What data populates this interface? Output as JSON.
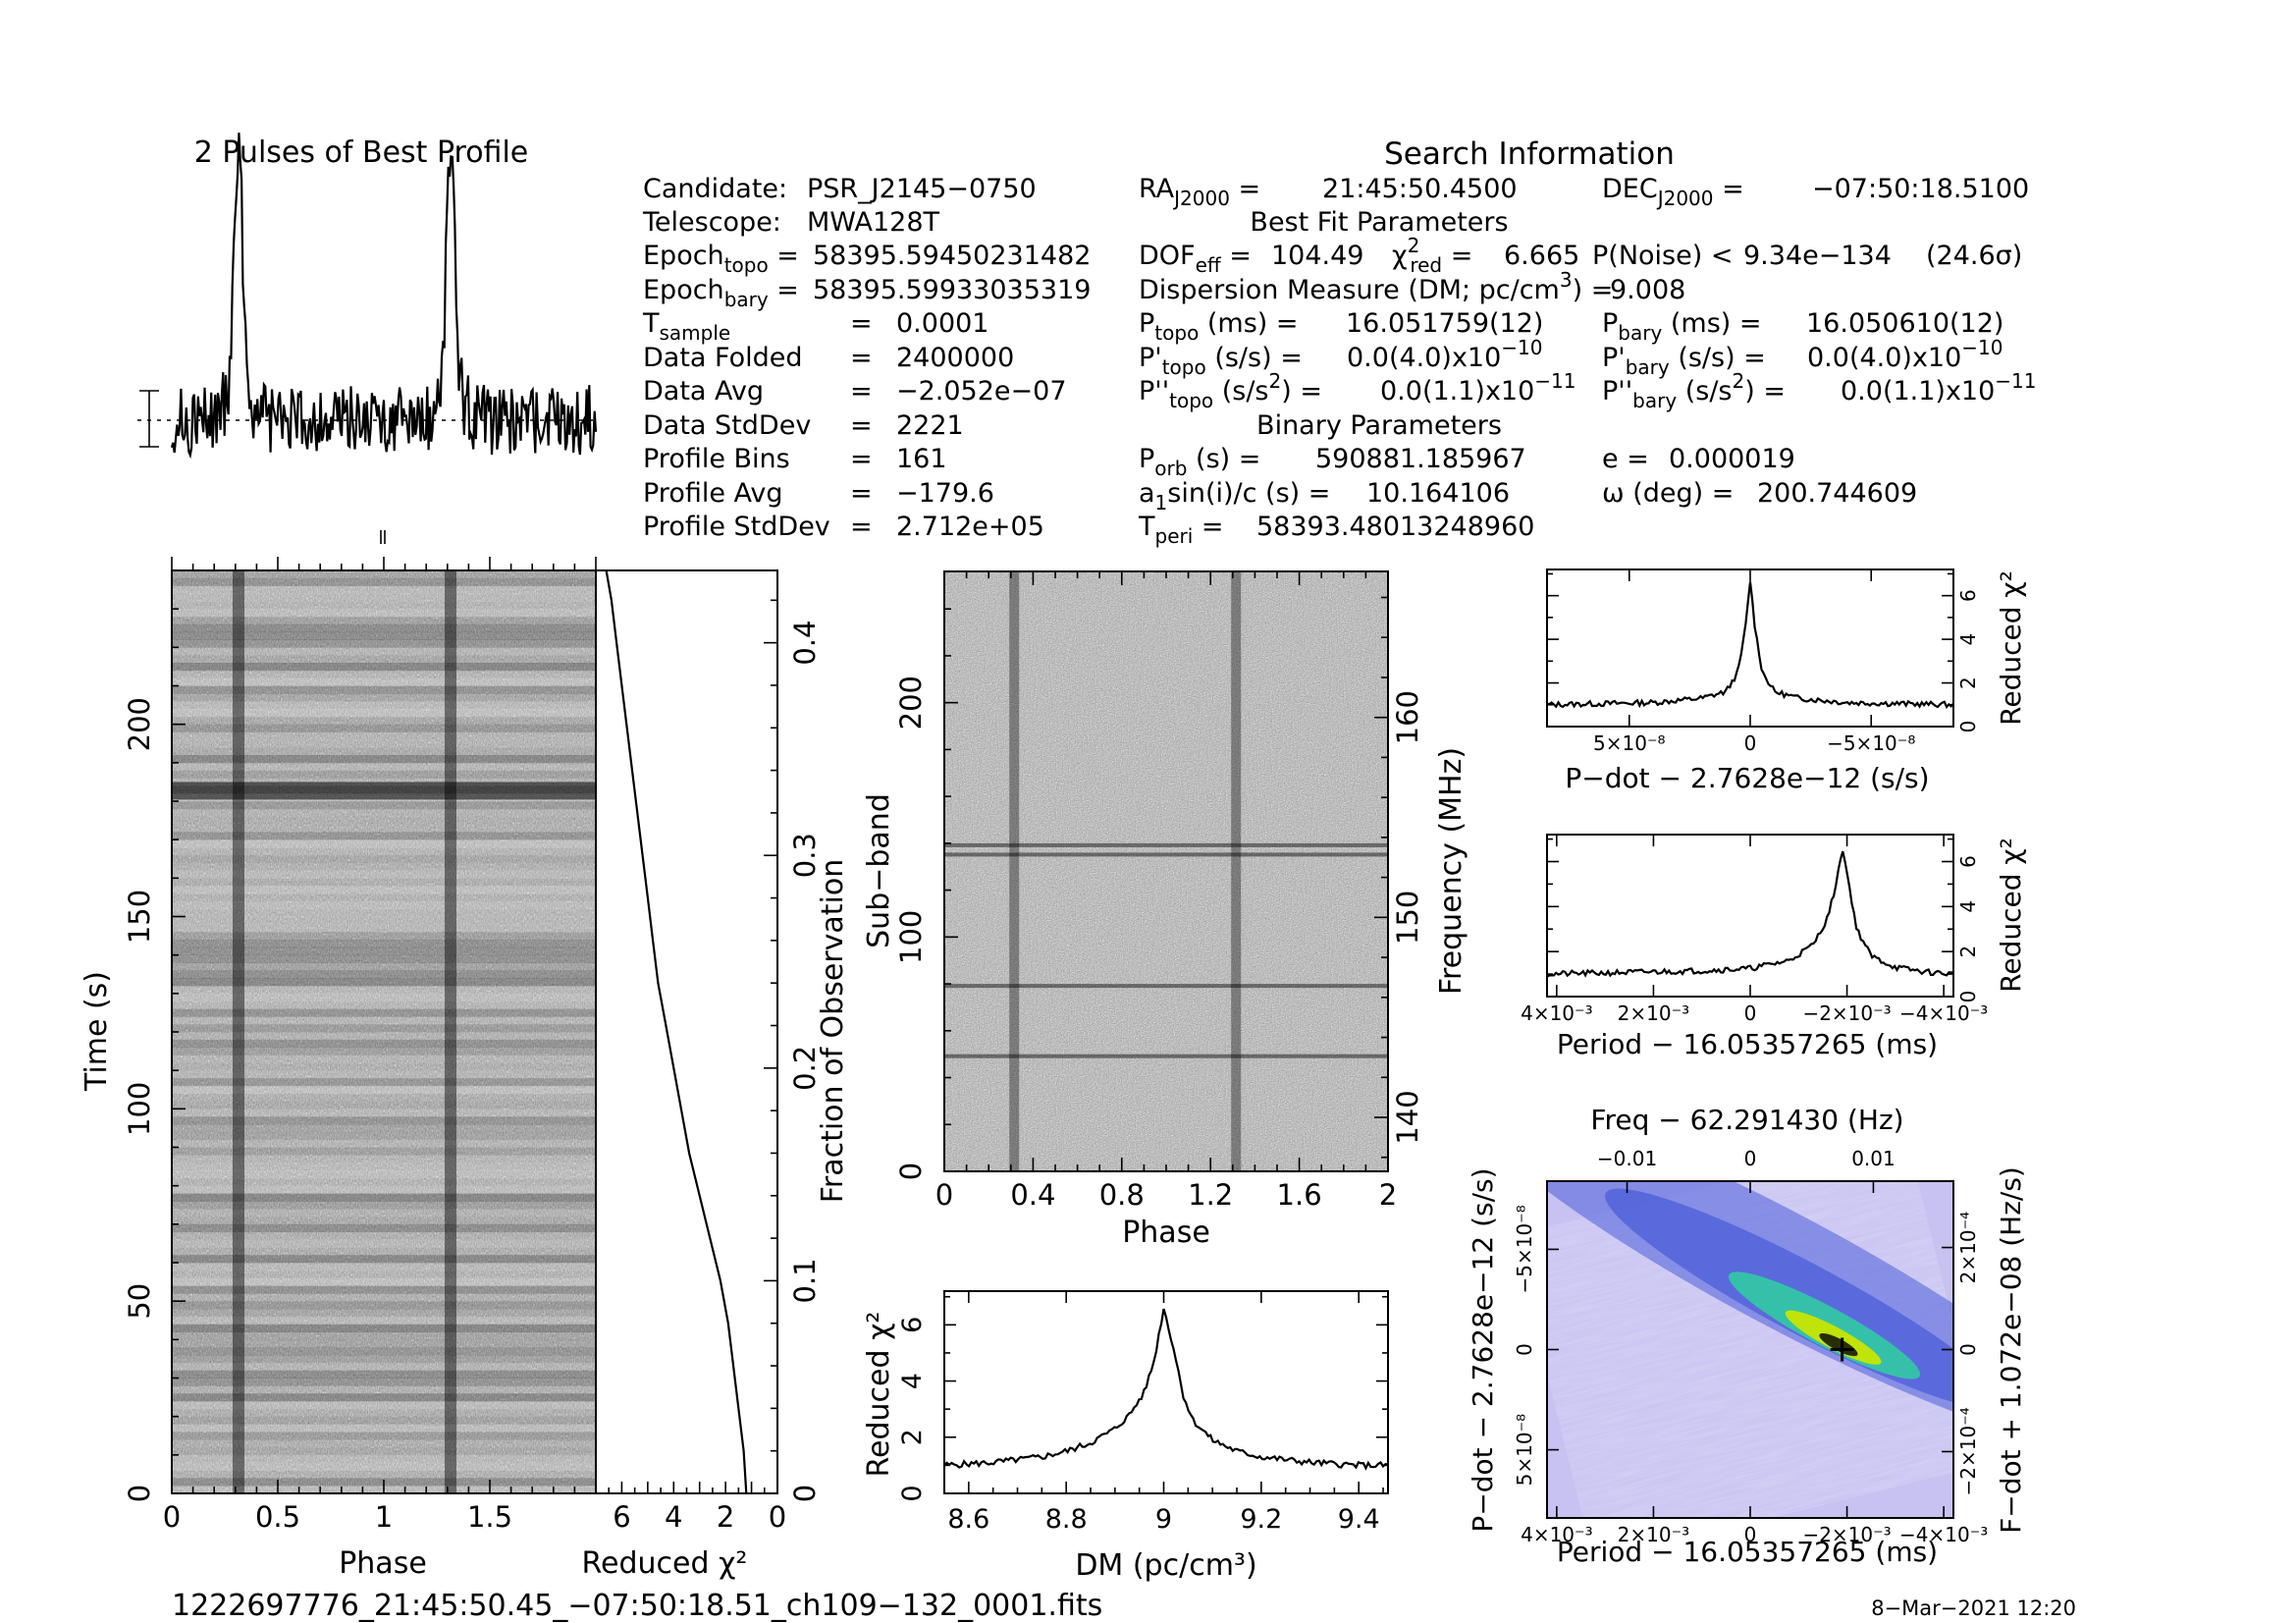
{
  "chart_data": {
    "title": "2 Pulses of Best Profile",
    "footer": {
      "filename": "1222697776_21:45:50.45_−07:50:18.51_ch109−132_0001.fits",
      "date": "8−Mar−2021 12:20"
    },
    "search_info": {
      "heading": "Search Information",
      "best_fit_heading": "Best Fit Parameters",
      "binary_heading": "Binary Parameters",
      "left_rows": [
        {
          "label": "Candidate:",
          "value": "PSR_J2145−0750"
        },
        {
          "label": "Telescope:",
          "value": "MWA128T"
        },
        {
          "label": "Epoch_topo = ",
          "value": "58395.59450231482"
        },
        {
          "label": "Epoch_bary = ",
          "value": "58395.59933035319"
        },
        {
          "label": "T_sample",
          "value": "0.0001"
        },
        {
          "label": "Data Folded",
          "value": "2400000"
        },
        {
          "label": "Data Avg",
          "value": "−2.052e−07"
        },
        {
          "label": "Data StdDev",
          "value": "2221"
        },
        {
          "label": "Profile Bins",
          "value": "161"
        },
        {
          "label": "Profile Avg",
          "value": "−179.6"
        },
        {
          "label": "Profile StdDev",
          "value": "2.712e+05"
        }
      ],
      "ra": "21:45:50.4500",
      "dec": "−07:50:18.5100",
      "dof_eff": "104.49",
      "chi2_red": "6.665",
      "p_noise": "9.34e−134",
      "sigma": "(24.6σ)",
      "dm": "9.008",
      "p_topo": "16.051759(12)",
      "p_bary": "16.050610(12)",
      "pdot_topo": "0.0(4.0)x10",
      "pdot_topo_exp": "−10",
      "pdot_bary": "0.0(4.0)x10",
      "pdot_bary_exp": "−10",
      "pddot_topo": "0.0(1.1)x10",
      "pddot_topo_exp": "−11",
      "pddot_bary": "0.0(1.1)x10",
      "pddot_bary_exp": "−11",
      "p_orb": "590881.185967",
      "a1sini": "10.164106",
      "t_peri": "58393.48013248960",
      "e": "0.000019",
      "omega": "200.744609"
    },
    "panels": [
      {
        "id": "profile",
        "type": "line",
        "title": "2 Pulses of Best Profile",
        "xlim": [
          0,
          2
        ],
        "peaks_at_phase": [
          0.315,
          1.315
        ],
        "bins": 161
      },
      {
        "id": "time_phase",
        "type": "heatmap",
        "xlabel": "Phase",
        "ylabel": "Time (s)",
        "xticks": [
          "0",
          "0.5",
          "1",
          "1.5"
        ],
        "yticks": [
          "0",
          "50",
          "100",
          "150",
          "200"
        ],
        "xlim": [
          0,
          2
        ],
        "ylim": [
          0,
          240
        ]
      },
      {
        "id": "time_chi2",
        "type": "line",
        "xlabel": "Reduced χ²",
        "ylabel": "Fraction of Observation",
        "xticks": [
          "6",
          "4",
          "2",
          "0"
        ],
        "yticks": [
          "0",
          "0.1",
          "0.2",
          "0.3",
          "0.4"
        ],
        "xlim": [
          7,
          0
        ],
        "ylim": [
          0,
          0.434
        ],
        "x": [
          6.6,
          6.4,
          6.2,
          6.0,
          5.8,
          5.6,
          5.4,
          5.2,
          5.0,
          4.8,
          4.6,
          4.3,
          4.0,
          3.7,
          3.4,
          3.0,
          2.6,
          2.2,
          1.9,
          1.6,
          1.3,
          1.2
        ],
        "y": [
          0.434,
          0.42,
          0.4,
          0.38,
          0.36,
          0.34,
          0.32,
          0.3,
          0.28,
          0.26,
          0.24,
          0.22,
          0.2,
          0.18,
          0.16,
          0.14,
          0.12,
          0.1,
          0.08,
          0.05,
          0.02,
          0.0
        ]
      },
      {
        "id": "subband_phase",
        "type": "heatmap",
        "xlabel": "Phase",
        "ylabel": "Sub−band",
        "y2label": "Frequency (MHz)",
        "xticks": [
          "0",
          "0.4",
          "0.8",
          "1.2",
          "1.6",
          "2"
        ],
        "yticks": [
          "0",
          "100",
          "200"
        ],
        "y2ticks": [
          "140",
          "150",
          "160"
        ],
        "xlim": [
          0,
          2
        ],
        "ylim": [
          0,
          256
        ],
        "y2lim": [
          137.3,
          167.3
        ]
      },
      {
        "id": "dm_chi2",
        "type": "line",
        "xlabel": "DM (pc/cm³)",
        "ylabel": "Reduced χ²",
        "xticks": [
          "8.6",
          "8.8",
          "9",
          "9.2",
          "9.4"
        ],
        "yticks": [
          "0",
          "2",
          "4",
          "6"
        ],
        "xlim": [
          8.55,
          9.46
        ],
        "ylim": [
          0,
          7.2
        ],
        "x": [
          8.55,
          8.6,
          8.65,
          8.7,
          8.75,
          8.8,
          8.85,
          8.9,
          8.93,
          8.96,
          8.98,
          9.0,
          9.02,
          9.04,
          9.06,
          9.1,
          9.15,
          9.2,
          9.25,
          9.3,
          9.35,
          9.4,
          9.46
        ],
        "y": [
          1.0,
          1.05,
          1.1,
          1.2,
          1.3,
          1.5,
          1.8,
          2.3,
          2.8,
          3.6,
          4.7,
          6.6,
          5.2,
          3.5,
          2.6,
          1.9,
          1.5,
          1.3,
          1.2,
          1.1,
          1.05,
          1.0,
          1.0
        ]
      },
      {
        "id": "pdot_chi2",
        "type": "line",
        "xlabel": "P−dot − 2.7628e−12 (s/s)",
        "ylabel": "Reduced χ²",
        "xticks": [
          "5×10⁻⁸",
          "0",
          "−5×10⁻⁸"
        ],
        "yticks": [
          "0",
          "2",
          "4",
          "6"
        ],
        "xlim": [
          8.4e-08,
          -8.4e-08
        ],
        "ylim": [
          0,
          7.2
        ],
        "x": [
          8.4e-08,
          4e-08,
          2e-08,
          1e-08,
          5e-09,
          2e-09,
          0,
          -2e-09,
          -5e-09,
          -1e-08,
          -2e-08,
          -4e-08,
          -8.4e-08
        ],
        "y": [
          1.0,
          1.1,
          1.3,
          1.6,
          2.5,
          4.5,
          6.7,
          4.5,
          2.5,
          1.6,
          1.3,
          1.1,
          1.0
        ]
      },
      {
        "id": "period_chi2",
        "type": "line",
        "xlabel": "Period − 16.05357265 (ms)",
        "ylabel": "Reduced χ²",
        "xticks": [
          "4×10⁻³",
          "2×10⁻³",
          "0",
          "−2×10⁻³",
          "−4×10⁻³"
        ],
        "yticks": [
          "0",
          "2",
          "4",
          "6"
        ],
        "xlim": [
          0.0042,
          -0.0042
        ],
        "ylim": [
          0,
          7.2
        ],
        "x": [
          0.0042,
          0.003,
          0.002,
          0.001,
          0.0,
          -0.0008,
          -0.0013,
          -0.0016,
          -0.0018,
          -0.0019,
          -0.002,
          -0.0022,
          -0.0025,
          -0.003,
          -0.0036,
          -0.0042
        ],
        "y": [
          1.0,
          1.05,
          1.1,
          1.15,
          1.25,
          1.6,
          2.3,
          3.5,
          5.2,
          6.7,
          5.5,
          3.0,
          1.8,
          1.3,
          1.1,
          1.0
        ]
      },
      {
        "id": "ppdot_plane",
        "type": "heatmap",
        "xlabel": "Period − 16.05357265 (ms)",
        "ylabel": "P−dot − 2.7628e−12 (s/s)",
        "x2label": "Freq − 62.291430 (Hz)",
        "y2label": "F−dot + 1.072e−08 (Hz/s)",
        "xticks": [
          "4×10⁻³",
          "2×10⁻³",
          "0",
          "−2×10⁻³",
          "−4×10⁻³"
        ],
        "yticks": [
          "−5×10⁻⁸",
          "0",
          "5×10⁻⁸"
        ],
        "x2ticks": [
          "−0.01",
          "0",
          "0.01"
        ],
        "y2ticks": [
          "2×10⁻⁴",
          "0",
          "−2×10⁻⁴"
        ],
        "xlim": [
          0.0042,
          -0.0042
        ],
        "ylim": [
          -8.4e-08,
          8.4e-08
        ],
        "best": {
          "x": -0.0019,
          "y": 0
        },
        "colors": {
          "low": "#c8c2f2",
          "mid": "#4b5ed8",
          "high": "#2fd0a0",
          "peak": "#c8e600"
        }
      }
    ]
  }
}
